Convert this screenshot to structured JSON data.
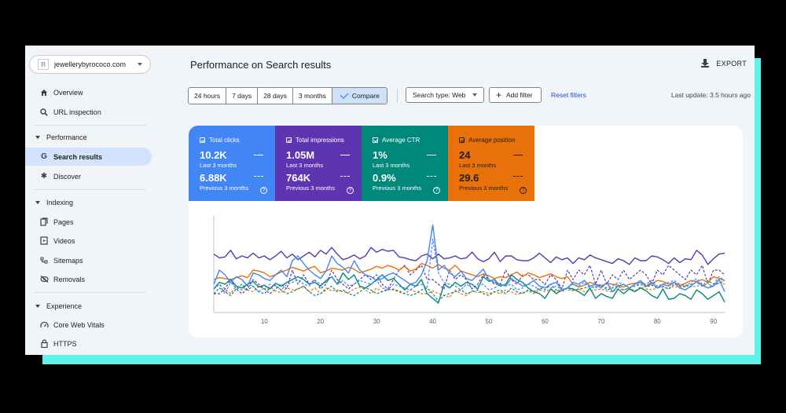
{
  "property": {
    "name": "jewellerybyrococo.com",
    "logo_letter": "R"
  },
  "sidebar": {
    "overview": "Overview",
    "url_inspection": "URL inspection",
    "performance_section": "Performance",
    "search_results": "Search results",
    "discover": "Discover",
    "indexing_section": "Indexing",
    "pages": "Pages",
    "videos": "Videos",
    "sitemaps": "Sitemaps",
    "removals": "Removals",
    "experience_section": "Experience",
    "core_web_vitals": "Core Web Vitals",
    "https": "HTTPS"
  },
  "header": {
    "title": "Performance on Search results",
    "export_label": "EXPORT"
  },
  "filters": {
    "date_ranges": [
      "24 hours",
      "7 days",
      "28 days",
      "3 months",
      "Compare"
    ],
    "selected": "Compare",
    "search_type": "Search type: Web",
    "add_filter": "Add filter",
    "reset": "Reset filters",
    "last_update": "Last update: 3.5 hours ago"
  },
  "metrics": [
    {
      "label": "Total clicks",
      "current": "10.2K",
      "current_period": "Last 3 months",
      "previous": "6.88K",
      "previous_period": "Previous 3 months",
      "color": "#4285f4",
      "text_color": "#ffffff"
    },
    {
      "label": "Total impressions",
      "current": "1.05M",
      "current_period": "Last 3 months",
      "previous": "764K",
      "previous_period": "Previous 3 months",
      "color": "#5e35b1",
      "text_color": "#ffffff"
    },
    {
      "label": "Average CTR",
      "current": "1%",
      "current_period": "Last 3 months",
      "previous": "0.9%",
      "previous_period": "Previous 3 months",
      "color": "#00897b",
      "text_color": "#ffffff"
    },
    {
      "label": "Average position",
      "current": "24",
      "current_period": "Last 3 months",
      "previous": "29.6",
      "previous_period": "Previous 3 months",
      "color": "#e8710a",
      "text_color": "#202124"
    }
  ],
  "chart_data": {
    "type": "line",
    "x_ticks": [
      10,
      20,
      30,
      40,
      50,
      60,
      70,
      80,
      90
    ],
    "xlim": [
      1,
      92
    ],
    "ylim": [
      0,
      100
    ],
    "series": [
      {
        "metric": "impressions",
        "period": "current",
        "color": "#5e35b1",
        "dashed": false,
        "values": [
          62,
          58,
          59,
          66,
          57,
          60,
          58,
          63,
          58,
          60,
          56,
          60,
          65,
          58,
          62,
          56,
          60,
          64,
          59,
          66,
          62,
          69,
          62,
          56,
          58,
          61,
          57,
          60,
          69,
          64,
          67,
          65,
          66,
          59,
          58,
          56,
          55,
          60,
          62,
          57,
          62,
          57,
          58,
          60,
          57,
          58,
          64,
          57,
          54,
          57,
          64,
          54,
          60,
          60,
          56,
          55,
          55,
          58,
          63,
          58,
          53,
          59,
          56,
          58,
          52,
          58,
          56,
          61,
          58,
          56,
          54,
          52,
          57,
          55,
          51,
          58,
          55,
          55,
          60,
          59,
          56,
          52,
          58,
          53,
          57,
          56,
          66,
          61,
          51,
          57,
          62,
          63
        ]
      },
      {
        "metric": "impressions",
        "period": "previous",
        "color": "#5e35b1",
        "dashed": true,
        "values": [
          20,
          20,
          25,
          35,
          25,
          20,
          25,
          35,
          30,
          25,
          20,
          25,
          30,
          25,
          45,
          30,
          40,
          30,
          35,
          25,
          30,
          45,
          35,
          30,
          25,
          30,
          35,
          40,
          35,
          40,
          30,
          25,
          35,
          45,
          50,
          40,
          45,
          50,
          35,
          35,
          30,
          25,
          45,
          35,
          40,
          35,
          25,
          30,
          40,
          35,
          30,
          30,
          45,
          35,
          30,
          40,
          40,
          35,
          35,
          30,
          40,
          35,
          25,
          45,
          35,
          45,
          40,
          50,
          30,
          45,
          30,
          40,
          35,
          45,
          35,
          40,
          45,
          40,
          30,
          45,
          40,
          50,
          45,
          40,
          35,
          45,
          40,
          50,
          30,
          45,
          45,
          40
        ]
      },
      {
        "metric": "position",
        "period": "current",
        "color": "#e8710a",
        "dashed": false,
        "values": [
          35,
          37,
          36,
          35,
          37,
          39,
          37,
          45,
          44,
          42,
          38,
          40,
          43,
          45,
          48,
          46,
          44,
          47,
          49,
          42,
          44,
          47,
          46,
          45,
          48,
          46,
          42,
          44,
          46,
          49,
          47,
          50,
          48,
          45,
          49,
          44,
          46,
          52,
          50,
          47,
          51,
          47,
          45,
          50,
          44,
          42,
          40,
          38,
          41,
          39,
          36,
          38,
          37,
          40,
          43,
          38,
          42,
          40,
          37,
          39,
          41,
          38,
          36,
          38,
          30,
          27,
          29,
          32,
          30,
          28,
          31,
          30,
          29,
          27,
          30,
          31,
          32,
          28,
          30,
          34,
          33,
          30,
          32,
          29,
          31,
          34,
          33,
          35,
          32,
          38,
          36,
          34
        ]
      },
      {
        "metric": "position",
        "period": "previous",
        "color": "#e8710a",
        "dashed": true,
        "values": [
          25,
          30,
          25,
          20,
          28,
          26,
          24,
          22,
          28,
          25,
          27,
          23,
          21,
          26,
          24,
          25,
          28,
          22,
          26,
          20,
          26,
          23,
          24,
          22,
          21,
          25,
          27,
          24,
          20,
          26,
          22,
          24,
          25,
          23,
          20,
          24,
          22,
          20,
          20,
          23,
          20,
          18,
          16,
          24,
          20,
          18,
          23,
          21,
          22,
          20,
          22,
          20,
          24,
          22,
          19,
          21,
          23,
          20,
          24,
          22,
          25,
          22,
          26,
          24,
          23,
          25,
          22,
          23,
          24,
          25,
          23,
          22,
          25,
          24,
          26,
          23,
          27,
          25,
          24,
          26,
          27,
          25,
          28,
          26,
          30,
          27,
          28,
          29,
          30,
          28,
          32,
          30
        ]
      },
      {
        "metric": "ctr",
        "period": "current",
        "color": "#00897b",
        "dashed": false,
        "values": [
          25,
          32,
          30,
          35,
          28,
          26,
          30,
          33,
          27,
          29,
          25,
          31,
          28,
          32,
          35,
          38,
          35,
          30,
          32,
          28,
          34,
          38,
          30,
          42,
          35,
          40,
          28,
          26,
          30,
          35,
          40,
          34,
          36,
          30,
          24,
          30,
          28,
          35,
          20,
          15,
          10,
          30,
          26,
          32,
          28,
          32,
          30,
          25,
          38,
          33,
          35,
          28,
          30,
          40,
          35,
          32,
          26,
          22,
          20,
          15,
          25,
          20,
          24,
          26,
          25,
          22,
          18,
          26,
          15,
          20,
          17,
          15,
          25,
          20,
          25,
          22,
          26,
          23,
          18,
          15,
          25,
          14,
          15,
          20,
          18,
          14,
          24,
          20,
          14,
          18,
          22,
          11
        ]
      },
      {
        "metric": "ctr",
        "period": "previous",
        "color": "#00897b",
        "dashed": true,
        "values": [
          20,
          26,
          22,
          18,
          25,
          30,
          24,
          28,
          22,
          20,
          26,
          29,
          24,
          20,
          22,
          25,
          28,
          22,
          18,
          20,
          24,
          28,
          22,
          24,
          20,
          18,
          22,
          26,
          24,
          20,
          22,
          25,
          24,
          22,
          20,
          18,
          20,
          24,
          26,
          20,
          12,
          18,
          20,
          22,
          24,
          20,
          22,
          24,
          20,
          18,
          22,
          24,
          20,
          26,
          22,
          20,
          24,
          22,
          26,
          24,
          30,
          24,
          22,
          26,
          24,
          25,
          26,
          28,
          26,
          30,
          24,
          26,
          28,
          24,
          26,
          28,
          30,
          27,
          29,
          26,
          28,
          25,
          30,
          28,
          27,
          30,
          32,
          28,
          34,
          30,
          31,
          34
        ]
      },
      {
        "metric": "clicks",
        "period": "current",
        "color": "#4285f4",
        "dashed": false,
        "values": [
          30,
          45,
          40,
          32,
          38,
          35,
          28,
          42,
          40,
          36,
          34,
          40,
          45,
          38,
          55,
          60,
          52,
          45,
          40,
          36,
          44,
          60,
          52,
          48,
          42,
          55,
          45,
          40,
          38,
          34,
          36,
          40,
          42,
          38,
          34,
          30,
          32,
          40,
          55,
          93,
          45,
          50,
          42,
          38,
          44,
          36,
          34,
          40,
          46,
          35,
          32,
          30,
          28,
          36,
          32,
          28,
          30,
          34,
          28,
          26,
          30,
          32,
          24,
          26,
          32,
          30,
          34,
          28,
          30,
          26,
          32,
          22,
          28,
          30,
          26,
          30,
          34,
          28,
          32,
          26,
          30,
          28,
          32,
          26,
          24,
          28,
          33,
          29,
          26,
          28,
          35,
          22
        ]
      },
      {
        "metric": "clicks",
        "period": "previous",
        "color": "#4285f4",
        "dashed": true,
        "values": [
          25,
          30,
          20,
          32,
          26,
          24,
          30,
          28,
          22,
          26,
          30,
          28,
          24,
          30,
          32,
          35,
          30,
          28,
          34,
          30,
          32,
          38,
          30,
          34,
          28,
          30,
          34,
          32,
          30,
          34,
          26,
          24,
          30,
          28,
          26,
          24,
          28,
          30,
          26,
          78,
          42,
          32,
          30,
          28,
          24,
          30,
          26,
          28,
          30,
          24,
          26,
          30,
          28,
          30,
          24,
          26,
          30,
          28,
          24,
          30,
          26,
          28,
          24,
          26,
          30,
          28,
          32,
          26,
          28,
          30,
          26,
          28,
          32,
          30,
          26,
          28,
          32,
          30,
          34,
          28,
          30,
          32,
          34,
          30,
          28,
          32,
          36,
          30,
          26,
          30,
          38,
          34
        ]
      }
    ]
  }
}
